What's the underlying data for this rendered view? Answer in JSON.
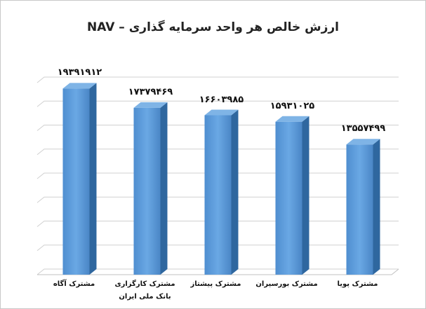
{
  "chart_data": {
    "type": "bar3d",
    "title": "ارزش خالص هر واحد سرمایه گذاری – NAV",
    "categories": [
      "مشترک آگاه",
      "مشترک کارگزاری بانک ملی ایران",
      "مشترک پیشتاز",
      "مشترک بورسیران",
      "مشترک پویا"
    ],
    "values": [
      19391912,
      17379469,
      16603985,
      15931025,
      13557499
    ],
    "value_labels": [
      "۱۹۳۹۱۹۱۲",
      "۱۷۳۷۹۴۶۹",
      "۱۶۶۰۳۹۸۵",
      "۱۵۹۳۱۰۲۵",
      "۱۳۵۵۷۴۹۹"
    ],
    "color": "#5b9bd5",
    "ylim": [
      0,
      20000000
    ],
    "grid_values": [
      0,
      2500000,
      5000000,
      7500000,
      10000000,
      12500000,
      15000000,
      17500000,
      20000000
    ],
    "grid": true
  }
}
